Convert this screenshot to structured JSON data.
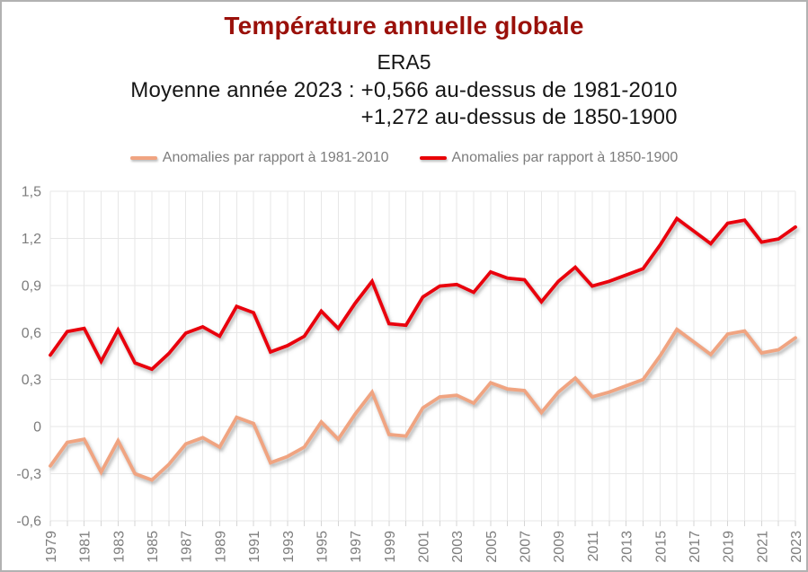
{
  "colors": {
    "title": "#9a100a",
    "series1": "#f0a481",
    "series2": "#e90007",
    "axis_text": "#7d7d7d",
    "gridline": "#e7e7e7",
    "tick": "#d6d6d6",
    "border": "#b2b2b2",
    "background": "#ffffff"
  },
  "chart_data": {
    "type": "line",
    "title": "Température annuelle globale",
    "subtitle": "ERA5",
    "annotations": [
      "Moyenne année 2023 : +0,566 au-dessus de 1981-2010",
      "+1,272 au-dessus de 1850-1900"
    ],
    "x": [
      1979,
      1980,
      1981,
      1982,
      1983,
      1984,
      1985,
      1986,
      1987,
      1988,
      1989,
      1990,
      1991,
      1992,
      1993,
      1994,
      1995,
      1996,
      1997,
      1998,
      1999,
      2000,
      2001,
      2002,
      2003,
      2004,
      2005,
      2006,
      2007,
      2008,
      2009,
      2010,
      2011,
      2012,
      2013,
      2014,
      2015,
      2016,
      2017,
      2018,
      2019,
      2020,
      2021,
      2022,
      2023
    ],
    "series": [
      {
        "name": "Anomalies par rapport à 1981-2010",
        "color_key": "series1",
        "values": [
          -0.25,
          -0.1,
          -0.08,
          -0.29,
          -0.09,
          -0.3,
          -0.34,
          -0.24,
          -0.11,
          -0.07,
          -0.13,
          0.06,
          0.02,
          -0.23,
          -0.19,
          -0.13,
          0.03,
          -0.08,
          0.08,
          0.22,
          -0.05,
          -0.06,
          0.12,
          0.19,
          0.2,
          0.15,
          0.28,
          0.24,
          0.23,
          0.09,
          0.22,
          0.31,
          0.19,
          0.22,
          0.26,
          0.3,
          0.45,
          0.62,
          0.54,
          0.46,
          0.59,
          0.61,
          0.47,
          0.49,
          0.566
        ]
      },
      {
        "name": "Anomalies par rapport à 1850-1900",
        "color_key": "series2",
        "values": [
          0.456,
          0.606,
          0.626,
          0.416,
          0.616,
          0.406,
          0.366,
          0.466,
          0.596,
          0.636,
          0.576,
          0.766,
          0.726,
          0.476,
          0.516,
          0.576,
          0.736,
          0.626,
          0.786,
          0.926,
          0.656,
          0.646,
          0.826,
          0.896,
          0.906,
          0.856,
          0.986,
          0.946,
          0.936,
          0.796,
          0.926,
          1.016,
          0.896,
          0.926,
          0.966,
          1.006,
          1.156,
          1.326,
          1.246,
          1.166,
          1.296,
          1.316,
          1.176,
          1.196,
          1.272
        ]
      }
    ],
    "ylim": [
      -0.6,
      1.5
    ],
    "yticks": [
      -0.6,
      -0.3,
      0,
      0.3,
      0.6,
      0.9,
      1.2,
      1.5
    ],
    "ytick_labels": [
      "-0,6",
      "-0,3",
      "0",
      "0,3",
      "0,6",
      "0,9",
      "1,2",
      "1,5"
    ],
    "xtick_labels": [
      "1979",
      "1981",
      "1983",
      "1985",
      "1987",
      "1989",
      "1991",
      "1993",
      "1995",
      "1997",
      "1999",
      "2001",
      "2003",
      "2005",
      "2007",
      "2009",
      "2011",
      "2013",
      "2015",
      "2017",
      "2019",
      "2021",
      "2023"
    ],
    "grid": true,
    "legend_position": "top"
  }
}
